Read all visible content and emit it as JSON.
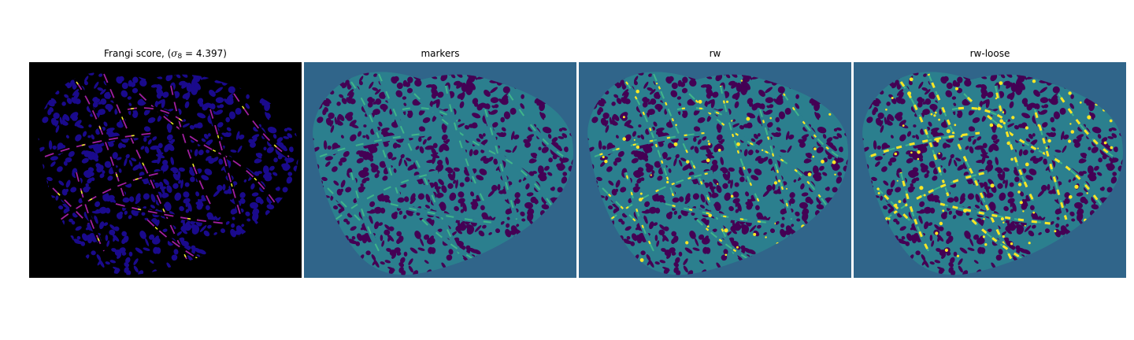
{
  "figure": {
    "panels": [
      {
        "id": "frangi",
        "title_prefix": "Frangi score, (",
        "title_math_symbol": "σ",
        "title_math_subscript": "8",
        "title_math_value": " = 4.397",
        "title_suffix": ")",
        "colormap": "plasma",
        "background_color": "#000000",
        "tissue_color": "#1a0a8c",
        "vessel_color": "#a21fa0",
        "bright_color": "#f0f921"
      },
      {
        "id": "markers",
        "title": "markers",
        "colormap": "viridis",
        "background_color": "#30658a",
        "tissue_color": "#440154",
        "vessel_color": "#2b7f8e",
        "marker_color": "#3fb58a"
      },
      {
        "id": "rw",
        "title": "rw",
        "colormap": "viridis",
        "background_color": "#30658a",
        "tissue_color": "#440154",
        "vessel_color": "#2b7f8e",
        "marker_color": "#3fb58a",
        "bright_color": "#fde725"
      },
      {
        "id": "rw-loose",
        "title": "rw-loose",
        "colormap": "viridis",
        "background_color": "#30658a",
        "tissue_color": "#440154",
        "vessel_color": "#2b7f8e",
        "marker_color": "#3fb58a",
        "bright_color": "#fde725"
      }
    ]
  }
}
